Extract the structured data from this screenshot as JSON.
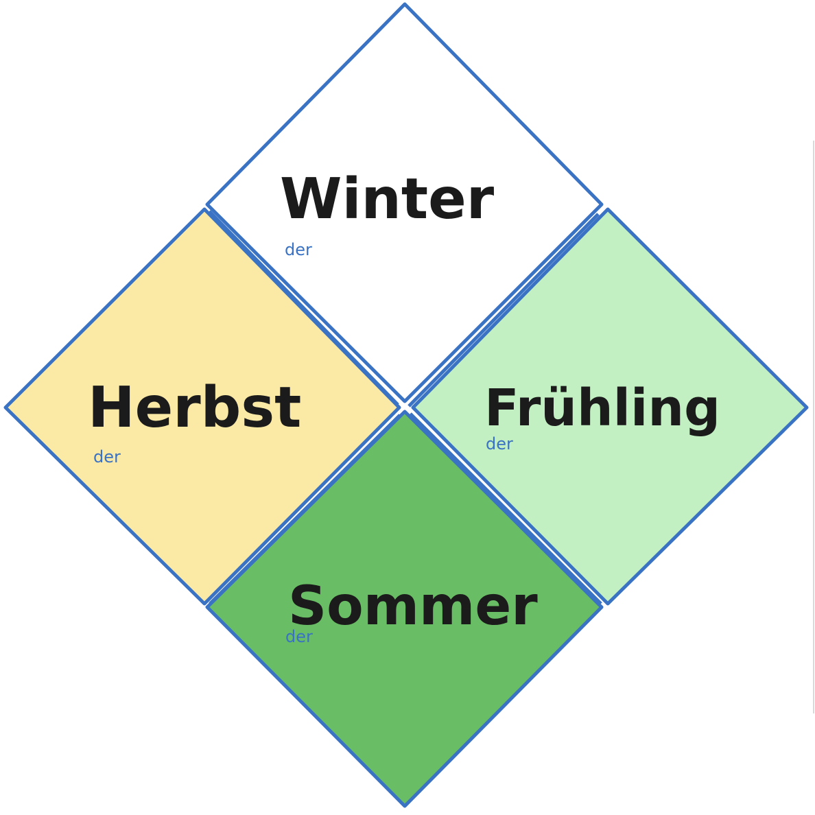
{
  "colors": {
    "outline": "#3a72c4",
    "article": "#3a72c4",
    "winter": "#ffffff",
    "autumn": "#fbeaa6",
    "spring": "#c2f0c2",
    "summer": "#69bd64",
    "text": "#1b1b1b"
  },
  "seasons": {
    "winter": {
      "word": "Winter",
      "article": "der"
    },
    "autumn": {
      "word": "Herbst",
      "article": "der"
    },
    "spring": {
      "word": "Frühling",
      "article": "der"
    },
    "summer": {
      "word": "Sommer",
      "article": "der"
    }
  }
}
